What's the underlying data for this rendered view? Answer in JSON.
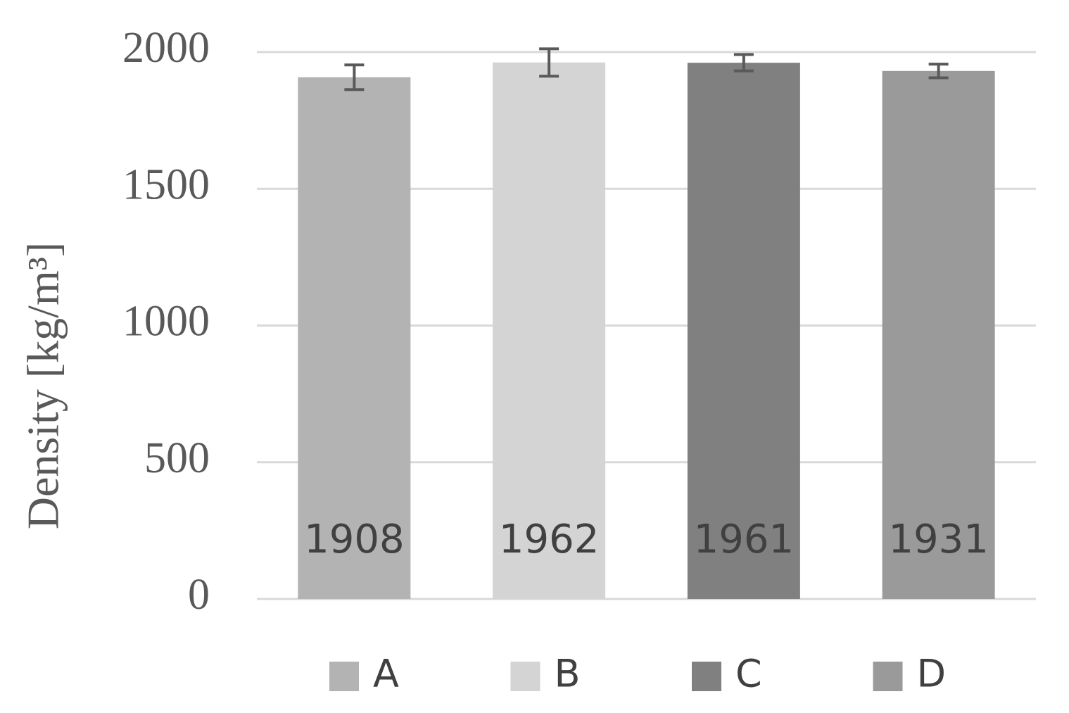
{
  "chart_data": {
    "type": "bar",
    "y_label": "Density [kg/m³]",
    "series": [
      {
        "name": "A",
        "color": "#b3b3b3",
        "values": [
          1908
        ],
        "errors": [
          45
        ]
      },
      {
        "name": "B",
        "color": "#d4d4d4",
        "values": [
          1962
        ],
        "errors": [
          50
        ]
      },
      {
        "name": "C",
        "color": "#808080",
        "values": [
          1961
        ],
        "errors": [
          30
        ]
      },
      {
        "name": "D",
        "color": "#9a9a9a",
        "values": [
          1931
        ],
        "errors": [
          25
        ]
      }
    ],
    "ylim": [
      0,
      2000
    ],
    "yticks": [
      0,
      500,
      1000,
      1500,
      2000
    ],
    "grid": true,
    "legend": "bottom"
  }
}
